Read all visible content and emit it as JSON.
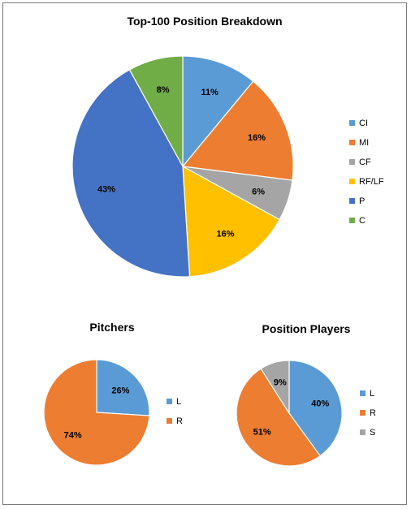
{
  "chart_data": [
    {
      "type": "pie",
      "title": "Top-100 Position Breakdown",
      "categories": [
        "CI",
        "MI",
        "CF",
        "RF/LF",
        "P",
        "C"
      ],
      "values": [
        11,
        16,
        6,
        16,
        43,
        8
      ],
      "labels": [
        "11%",
        "16%",
        "6%",
        "16%",
        "43%",
        "8%"
      ],
      "colors": [
        "#5B9BD5",
        "#ED7D31",
        "#A5A5A5",
        "#FFC000",
        "#4472C4",
        "#70AD47"
      ],
      "legend": "right"
    },
    {
      "type": "pie",
      "title": "Pitchers",
      "categories": [
        "L",
        "R"
      ],
      "values": [
        26,
        74
      ],
      "labels": [
        "26%",
        "74%"
      ],
      "colors": [
        "#5B9BD5",
        "#ED7D31"
      ],
      "legend": "right"
    },
    {
      "type": "pie",
      "title": "Position Players",
      "categories": [
        "L",
        "R",
        "S"
      ],
      "values": [
        40,
        51,
        9
      ],
      "labels": [
        "40%",
        "51%",
        "9%"
      ],
      "colors": [
        "#5B9BD5",
        "#ED7D31",
        "#A5A5A5"
      ],
      "legend": "right"
    }
  ]
}
